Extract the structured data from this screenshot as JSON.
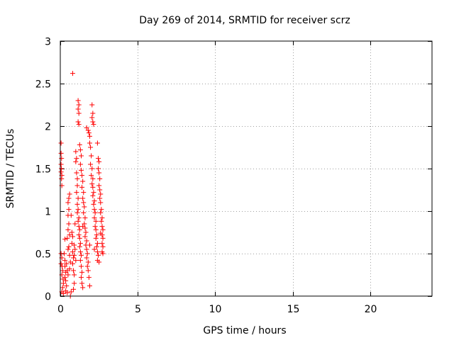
{
  "chart_data": {
    "type": "scatter",
    "title": "Day 269 of 2014, SRMTID for receiver scrz",
    "xlabel": "GPS time / hours",
    "ylabel": "SRMTID / TECUs",
    "xlim": [
      0,
      24
    ],
    "ylim": [
      0,
      3
    ],
    "xticks": [
      0,
      5,
      10,
      15,
      20
    ],
    "xtick_labels": [
      "0",
      "5",
      "10",
      "15",
      "20"
    ],
    "yticks": [
      0,
      0.5,
      1,
      1.5,
      2,
      2.5,
      3
    ],
    "ytick_labels": [
      "0",
      "0.5",
      "1",
      "1.5",
      "2",
      "2.5",
      "3"
    ],
    "grid": true,
    "marker": "+",
    "color": "#ff0000",
    "series": [
      {
        "name": "SRMTID",
        "points": [
          [
            0.05,
            1.8
          ],
          [
            0.05,
            1.68
          ],
          [
            0.08,
            1.62
          ],
          [
            0.05,
            1.55
          ],
          [
            0.07,
            1.5
          ],
          [
            0.05,
            1.46
          ],
          [
            0.1,
            1.42
          ],
          [
            0.08,
            1.38
          ],
          [
            0.1,
            1.3
          ],
          [
            0.05,
            0.5
          ],
          [
            0.1,
            0.45
          ],
          [
            0.05,
            0.38
          ],
          [
            0.12,
            0.35
          ],
          [
            0.15,
            0.3
          ],
          [
            0.1,
            0.25
          ],
          [
            0.18,
            0.2
          ],
          [
            0.2,
            0.15
          ],
          [
            0.15,
            0.1
          ],
          [
            0.1,
            0.05
          ],
          [
            0.2,
            0.03
          ],
          [
            0.25,
            0.5
          ],
          [
            0.3,
            0.42
          ],
          [
            0.3,
            0.35
          ],
          [
            0.35,
            0.28
          ],
          [
            0.3,
            0.22
          ],
          [
            0.35,
            0.18
          ],
          [
            0.4,
            0.12
          ],
          [
            0.35,
            0.06
          ],
          [
            0.45,
            0.04
          ],
          [
            0.4,
            0.38
          ],
          [
            0.45,
            0.3
          ],
          [
            0.5,
            0.25
          ],
          [
            0.5,
            0.55
          ],
          [
            0.45,
            0.68
          ],
          [
            0.5,
            0.78
          ],
          [
            0.55,
            0.85
          ],
          [
            0.5,
            0.95
          ],
          [
            0.55,
            1.02
          ],
          [
            0.5,
            1.1
          ],
          [
            0.55,
            1.15
          ],
          [
            0.6,
            1.2
          ],
          [
            0.55,
            0.58
          ],
          [
            0.6,
            0.48
          ],
          [
            0.65,
            0.4
          ],
          [
            0.6,
            0.32
          ],
          [
            0.7,
            0.05
          ],
          [
            0.65,
            0.0
          ],
          [
            0.8,
            2.62
          ],
          [
            0.7,
            0.95
          ],
          [
            0.75,
            0.75
          ],
          [
            0.8,
            0.7
          ],
          [
            0.75,
            0.62
          ],
          [
            0.8,
            0.52
          ],
          [
            0.85,
            0.45
          ],
          [
            0.8,
            0.38
          ],
          [
            0.85,
            0.3
          ],
          [
            0.9,
            0.25
          ],
          [
            0.9,
            0.15
          ],
          [
            0.85,
            0.08
          ],
          [
            0.9,
            0.6
          ],
          [
            0.95,
            0.55
          ],
          [
            0.9,
            0.48
          ],
          [
            1.0,
            0.42
          ],
          [
            1.0,
            1.7
          ],
          [
            1.05,
            1.62
          ],
          [
            1.0,
            1.58
          ],
          [
            1.05,
            1.45
          ],
          [
            1.1,
            1.38
          ],
          [
            1.1,
            1.3
          ],
          [
            1.05,
            1.22
          ],
          [
            1.15,
            1.15
          ],
          [
            1.1,
            1.08
          ],
          [
            1.15,
            1.02
          ],
          [
            1.1,
            0.98
          ],
          [
            1.2,
            0.92
          ],
          [
            1.15,
            0.88
          ],
          [
            1.2,
            0.82
          ],
          [
            1.25,
            0.78
          ],
          [
            1.2,
            0.72
          ],
          [
            1.25,
            0.68
          ],
          [
            1.3,
            0.62
          ],
          [
            1.25,
            0.58
          ],
          [
            1.3,
            0.52
          ],
          [
            1.35,
            0.48
          ],
          [
            1.3,
            0.42
          ],
          [
            1.35,
            0.35
          ],
          [
            1.4,
            0.28
          ],
          [
            1.35,
            0.22
          ],
          [
            1.4,
            0.15
          ],
          [
            1.45,
            0.1
          ],
          [
            1.15,
            2.3
          ],
          [
            1.2,
            2.25
          ],
          [
            1.15,
            2.2
          ],
          [
            1.2,
            2.15
          ],
          [
            1.15,
            2.05
          ],
          [
            1.2,
            2.02
          ],
          [
            1.25,
            1.78
          ],
          [
            1.3,
            1.72
          ],
          [
            1.35,
            1.65
          ],
          [
            1.3,
            1.55
          ],
          [
            1.35,
            1.48
          ],
          [
            1.4,
            1.42
          ],
          [
            1.45,
            1.35
          ],
          [
            1.4,
            1.28
          ],
          [
            1.5,
            1.22
          ],
          [
            1.45,
            1.15
          ],
          [
            1.5,
            1.1
          ],
          [
            1.55,
            1.05
          ],
          [
            1.5,
            0.98
          ],
          [
            1.6,
            0.92
          ],
          [
            1.55,
            0.85
          ],
          [
            1.6,
            0.8
          ],
          [
            1.65,
            0.75
          ],
          [
            1.6,
            0.7
          ],
          [
            1.7,
            0.65
          ],
          [
            1.65,
            0.6
          ],
          [
            1.7,
            0.55
          ],
          [
            1.75,
            0.5
          ],
          [
            1.7,
            0.45
          ],
          [
            1.8,
            0.4
          ],
          [
            1.75,
            0.35
          ],
          [
            1.8,
            0.3
          ],
          [
            1.85,
            0.22
          ],
          [
            1.9,
            0.12
          ],
          [
            1.7,
            1.98
          ],
          [
            1.8,
            1.95
          ],
          [
            1.85,
            1.92
          ],
          [
            1.9,
            1.88
          ],
          [
            2.05,
            2.25
          ],
          [
            2.1,
            2.15
          ],
          [
            2.05,
            2.1
          ],
          [
            2.1,
            2.05
          ],
          [
            2.15,
            2.02
          ],
          [
            1.9,
            1.8
          ],
          [
            1.95,
            1.75
          ],
          [
            2.0,
            1.65
          ],
          [
            1.95,
            1.55
          ],
          [
            2.05,
            1.5
          ],
          [
            2.0,
            1.42
          ],
          [
            2.1,
            1.38
          ],
          [
            2.05,
            1.32
          ],
          [
            2.1,
            1.28
          ],
          [
            2.15,
            1.22
          ],
          [
            2.1,
            1.18
          ],
          [
            2.2,
            1.12
          ],
          [
            2.15,
            1.08
          ],
          [
            2.2,
            1.02
          ],
          [
            2.25,
            0.98
          ],
          [
            2.2,
            0.92
          ],
          [
            2.3,
            0.88
          ],
          [
            2.25,
            0.82
          ],
          [
            2.3,
            0.78
          ],
          [
            2.35,
            0.72
          ],
          [
            2.3,
            0.68
          ],
          [
            2.4,
            0.62
          ],
          [
            2.35,
            0.58
          ],
          [
            2.4,
            0.52
          ],
          [
            2.45,
            0.48
          ],
          [
            2.4,
            0.42
          ],
          [
            2.5,
            0.4
          ],
          [
            2.4,
            1.8
          ],
          [
            2.45,
            1.62
          ],
          [
            2.5,
            1.58
          ],
          [
            2.45,
            1.5
          ],
          [
            2.5,
            1.45
          ],
          [
            2.55,
            1.38
          ],
          [
            2.5,
            1.3
          ],
          [
            2.55,
            1.25
          ],
          [
            2.6,
            1.2
          ],
          [
            2.55,
            1.15
          ],
          [
            2.6,
            1.1
          ],
          [
            2.65,
            1.02
          ],
          [
            2.6,
            0.98
          ],
          [
            2.7,
            0.92
          ],
          [
            2.65,
            0.88
          ],
          [
            2.7,
            0.82
          ],
          [
            2.75,
            0.78
          ],
          [
            2.7,
            0.72
          ],
          [
            2.75,
            0.68
          ],
          [
            2.7,
            0.62
          ],
          [
            2.75,
            0.58
          ],
          [
            2.7,
            0.52
          ],
          [
            2.75,
            0.5
          ],
          [
            0.3,
            0.67
          ],
          [
            0.6,
            0.72
          ],
          [
            0.95,
            0.85
          ],
          [
            1.45,
            0.82
          ],
          [
            1.9,
            0.6
          ],
          [
            2.2,
            0.55
          ],
          [
            2.6,
            0.74
          ]
        ]
      }
    ]
  }
}
